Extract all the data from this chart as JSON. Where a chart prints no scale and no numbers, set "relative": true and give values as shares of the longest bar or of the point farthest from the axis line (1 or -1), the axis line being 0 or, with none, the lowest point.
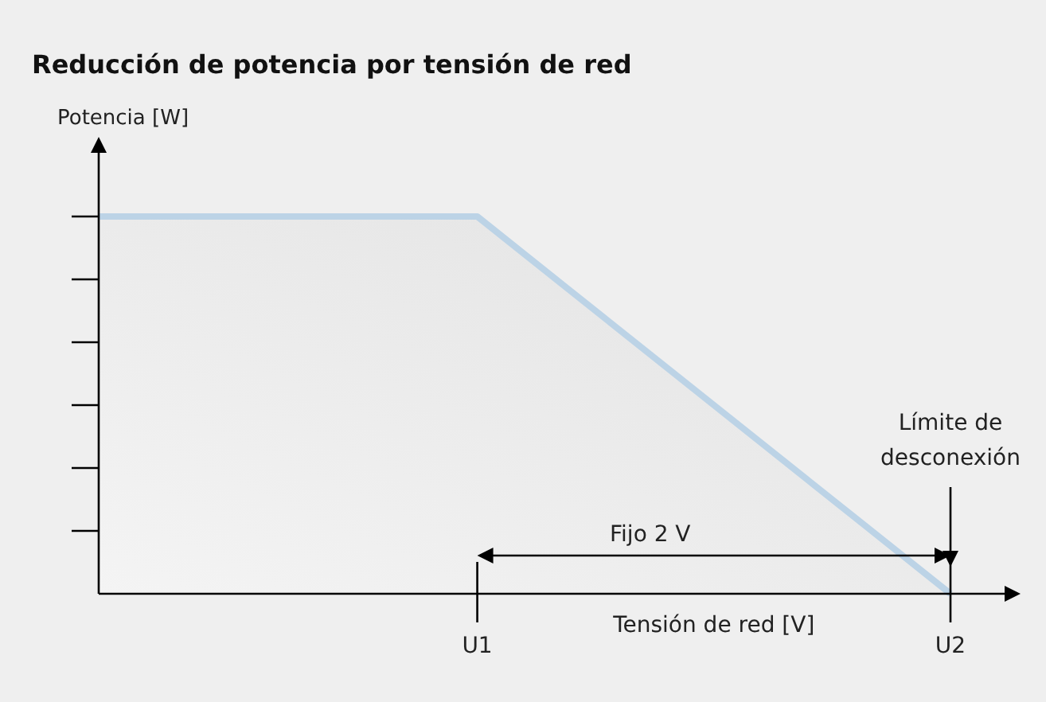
{
  "chart_data": {
    "type": "area",
    "title": "Reducción de potencia por tensión de red",
    "xlabel": "Tensión de red [V]",
    "ylabel": "Potencia [W]",
    "relative": true,
    "categories": [
      null,
      null,
      null,
      null,
      "U1",
      null,
      null,
      null,
      null,
      "U2"
    ],
    "series": [
      {
        "color": "#bcd3e6",
        "values": [
          1,
          1,
          1,
          1,
          1,
          0.8,
          0.6,
          0.4,
          0.2,
          0
        ]
      }
    ],
    "annotations": [
      "Fijo 2 V",
      "Límite de desconexión"
    ]
  }
}
